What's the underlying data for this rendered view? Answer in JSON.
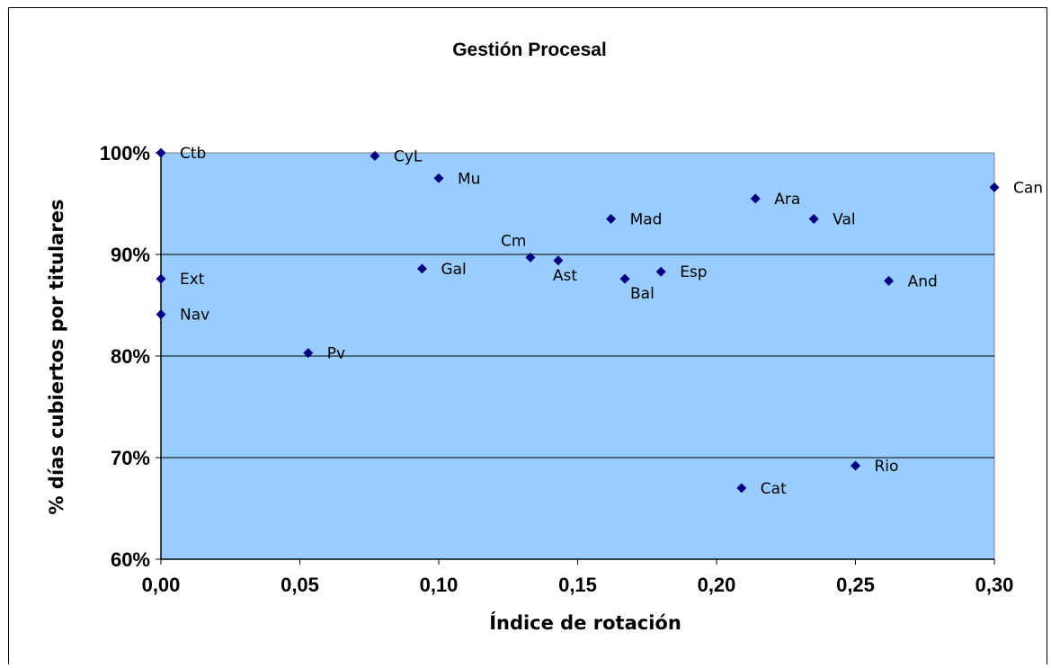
{
  "chart_data": {
    "type": "scatter",
    "title": "Gestión Procesal",
    "xlabel": "Índice de rotación",
    "ylabel": "% días cubiertos por titulares",
    "xlim": [
      0,
      0.3
    ],
    "ylim": [
      0.6,
      1.0
    ],
    "x_ticks": [
      0.0,
      0.05,
      0.1,
      0.15,
      0.2,
      0.25,
      0.3
    ],
    "x_tick_labels": [
      "0,00",
      "0,05",
      "0,10",
      "0,15",
      "0,20",
      "0,25",
      "0,30"
    ],
    "y_ticks": [
      0.6,
      0.7,
      0.8,
      0.9,
      1.0
    ],
    "y_tick_labels": [
      "60%",
      "70%",
      "80%",
      "90%",
      "100%"
    ],
    "grid": "horizontal",
    "plot_background": "#99ccff",
    "marker_color": "#000080",
    "points": [
      {
        "label": "Ctb",
        "x": 0.0,
        "y": 1.0
      },
      {
        "label": "CyL",
        "x": 0.077,
        "y": 0.997
      },
      {
        "label": "Mu",
        "x": 0.1,
        "y": 0.975
      },
      {
        "label": "Can",
        "x": 0.3,
        "y": 0.966
      },
      {
        "label": "Ara",
        "x": 0.214,
        "y": 0.955
      },
      {
        "label": "Mad",
        "x": 0.162,
        "y": 0.935
      },
      {
        "label": "Val",
        "x": 0.235,
        "y": 0.935
      },
      {
        "label": "Cm",
        "x": 0.133,
        "y": 0.897
      },
      {
        "label": "Ast",
        "x": 0.143,
        "y": 0.894
      },
      {
        "label": "Gal",
        "x": 0.094,
        "y": 0.886
      },
      {
        "label": "Esp",
        "x": 0.18,
        "y": 0.883
      },
      {
        "label": "Ext",
        "x": 0.0,
        "y": 0.876
      },
      {
        "label": "Bal",
        "x": 0.167,
        "y": 0.876
      },
      {
        "label": "And",
        "x": 0.262,
        "y": 0.874
      },
      {
        "label": "Nav",
        "x": 0.0,
        "y": 0.841
      },
      {
        "label": "Pv",
        "x": 0.053,
        "y": 0.803
      },
      {
        "label": "Rio",
        "x": 0.25,
        "y": 0.692
      },
      {
        "label": "Cat",
        "x": 0.209,
        "y": 0.67
      }
    ]
  }
}
